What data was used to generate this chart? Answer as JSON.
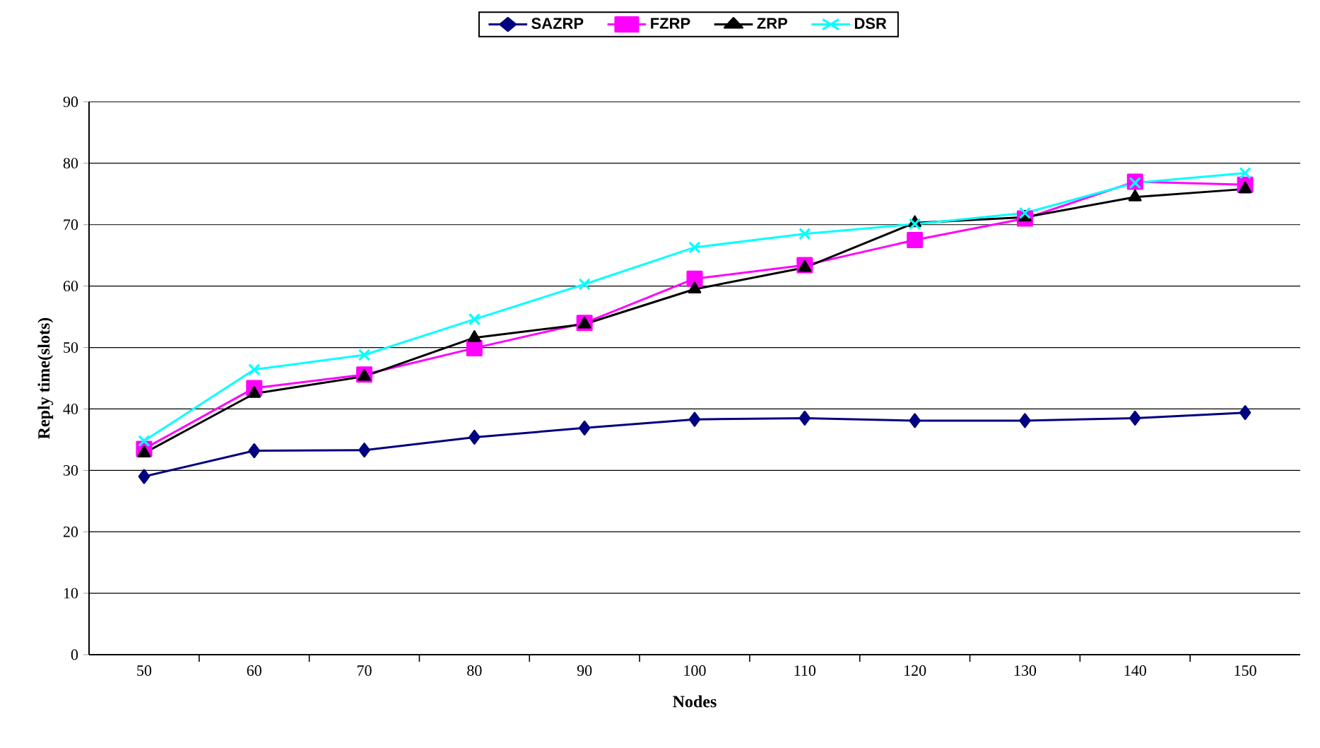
{
  "chart_data": {
    "type": "line",
    "xlabel": "Nodes",
    "ylabel": "Reply time(slots)",
    "categories": [
      "50",
      "60",
      "70",
      "80",
      "90",
      "100",
      "110",
      "120",
      "130",
      "140",
      "150"
    ],
    "series": [
      {
        "name": "SAZRP",
        "color": "#000080",
        "marker": "diamond",
        "values": [
          29.0,
          33.2,
          33.3,
          35.4,
          36.9,
          38.3,
          38.5,
          38.1,
          38.1,
          38.5,
          39.4
        ]
      },
      {
        "name": "FZRP",
        "color": "#ff00ff",
        "marker": "square",
        "values": [
          33.5,
          43.4,
          45.6,
          49.9,
          54.0,
          61.2,
          63.4,
          67.5,
          71.0,
          77.0,
          76.5
        ]
      },
      {
        "name": "ZRP",
        "color": "#000000",
        "marker": "triangle",
        "values": [
          32.8,
          42.5,
          45.3,
          51.6,
          53.8,
          59.5,
          63.0,
          70.3,
          71.2,
          74.5,
          75.8
        ]
      },
      {
        "name": "DSR",
        "color": "#00ffff",
        "marker": "cross",
        "values": [
          34.8,
          46.4,
          48.8,
          54.6,
          60.3,
          66.3,
          68.5,
          70.1,
          71.9,
          76.8,
          78.4
        ]
      }
    ],
    "ylim": [
      0,
      90
    ],
    "yticks": [
      0,
      10,
      20,
      30,
      40,
      50,
      60,
      70,
      80,
      90
    ],
    "grid": "y",
    "legend": "top",
    "line_style": "solid"
  }
}
